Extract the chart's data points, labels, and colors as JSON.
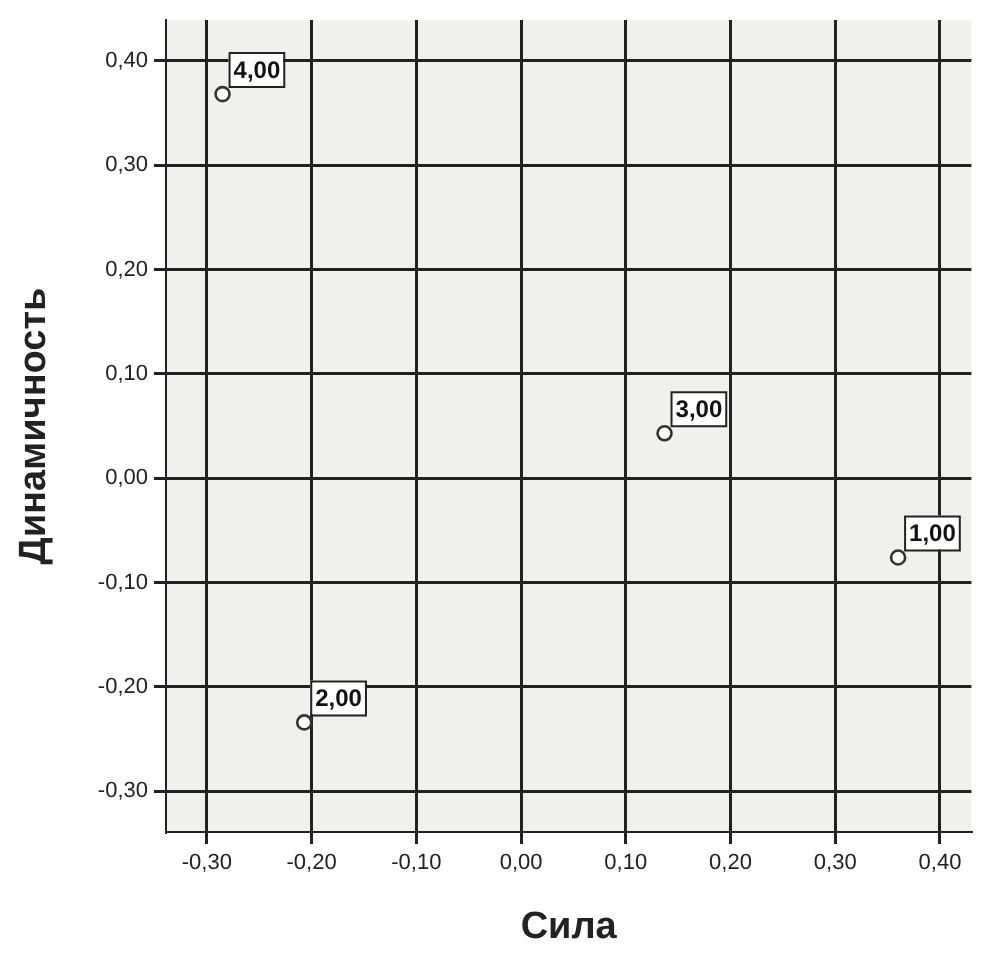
{
  "chart_data": {
    "type": "scatter",
    "xlabel": "Сила",
    "ylabel": "Динамичность",
    "x": [
      0.36,
      -0.207,
      0.137,
      -0.285
    ],
    "values": [
      -0.076,
      -0.234,
      0.043,
      0.368
    ],
    "color": "#333333",
    "marker": "circle",
    "grid": true,
    "xlim": [
      -0.339,
      0.43
    ],
    "ylim": [
      -0.339,
      0.439
    ],
    "xticks": [
      {
        "value": -0.3,
        "label": "-0,30"
      },
      {
        "value": -0.2,
        "label": "-0,20"
      },
      {
        "value": -0.1,
        "label": "-0,10"
      },
      {
        "value": 0,
        "label": "0,00"
      },
      {
        "value": 0.1,
        "label": "0,10"
      },
      {
        "value": 0.2,
        "label": "0,20"
      },
      {
        "value": 0.3,
        "label": "0,30"
      },
      {
        "value": 0.4,
        "label": "0,40"
      }
    ],
    "yticks": [
      {
        "value": -0.3,
        "label": "-0,30"
      },
      {
        "value": -0.2,
        "label": "-0,20"
      },
      {
        "value": -0.1,
        "label": "-0,10"
      },
      {
        "value": 0,
        "label": "0,00"
      },
      {
        "value": 0.1,
        "label": "0,10"
      },
      {
        "value": 0.2,
        "label": "0,20"
      },
      {
        "value": 0.3,
        "label": "0,30"
      },
      {
        "value": 0.4,
        "label": "0,40"
      }
    ],
    "annotations": [
      {
        "text": "1,00",
        "x": 0.36,
        "y": -0.076
      },
      {
        "text": "2,00",
        "x": -0.207,
        "y": -0.234
      },
      {
        "text": "3,00",
        "x": 0.137,
        "y": 0.043
      },
      {
        "text": "4,00",
        "x": -0.285,
        "y": 0.368
      }
    ]
  }
}
